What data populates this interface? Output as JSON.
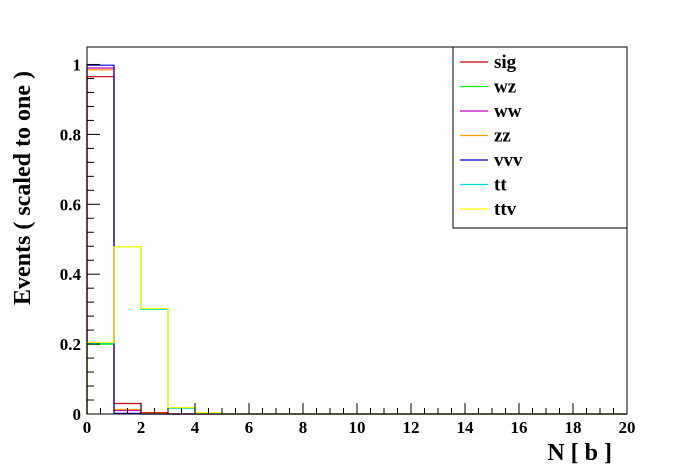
{
  "chart_data": {
    "type": "line",
    "subtype": "step-histogram",
    "xlabel": "N [ b ]",
    "ylabel": "Events  ( scaled to one )",
    "xlim": [
      0,
      20
    ],
    "ylim": [
      0,
      1.05
    ],
    "x_ticks": [
      "0",
      "2",
      "4",
      "6",
      "8",
      "10",
      "12",
      "14",
      "16",
      "18",
      "20"
    ],
    "y_ticks": [
      "0",
      "0.2",
      "0.4",
      "0.6",
      "0.8",
      "1"
    ],
    "bin_edges": [
      0,
      1,
      2,
      3,
      4,
      5,
      6,
      7,
      8,
      9,
      10,
      11,
      12,
      13,
      14,
      15,
      16,
      17,
      18,
      19,
      20
    ],
    "grid": false,
    "legend_position": "top-right",
    "series": [
      {
        "name": "sig",
        "color": "#cc0000",
        "values": [
          0.965,
          0.03,
          0.004,
          0,
          0,
          0,
          0,
          0,
          0,
          0,
          0,
          0,
          0,
          0,
          0,
          0,
          0,
          0,
          0,
          0
        ]
      },
      {
        "name": "wz",
        "color": "#00ee00",
        "values": [
          0.2,
          0.478,
          0.3,
          0.018,
          0.004,
          0,
          0,
          0,
          0,
          0,
          0,
          0,
          0,
          0,
          0,
          0,
          0,
          0,
          0,
          0
        ]
      },
      {
        "name": "ww",
        "color": "#cc00cc",
        "values": [
          0.99,
          0.01,
          0,
          0,
          0,
          0,
          0,
          0,
          0,
          0,
          0,
          0,
          0,
          0,
          0,
          0,
          0,
          0,
          0,
          0
        ]
      },
      {
        "name": "zz",
        "color": "#ff9900",
        "values": [
          0.985,
          0.013,
          0.002,
          0,
          0,
          0,
          0,
          0,
          0,
          0,
          0,
          0,
          0,
          0,
          0,
          0,
          0,
          0,
          0,
          0
        ]
      },
      {
        "name": "vvv",
        "color": "#0000cc",
        "values": [
          0.998,
          0.002,
          0,
          0,
          0,
          0,
          0,
          0,
          0,
          0,
          0,
          0,
          0,
          0,
          0,
          0,
          0,
          0,
          0,
          0
        ]
      },
      {
        "name": "tt",
        "color": "#00dddd",
        "values": [
          0.203,
          0.478,
          0.3,
          0.016,
          0.003,
          0,
          0,
          0,
          0,
          0,
          0,
          0,
          0,
          0,
          0,
          0,
          0,
          0,
          0,
          0
        ]
      },
      {
        "name": "ttv",
        "color": "#ffff00",
        "values": [
          0.205,
          0.478,
          0.302,
          0.018,
          0.004,
          0,
          0,
          0,
          0,
          0,
          0,
          0,
          0,
          0,
          0,
          0,
          0,
          0,
          0,
          0
        ]
      }
    ]
  }
}
